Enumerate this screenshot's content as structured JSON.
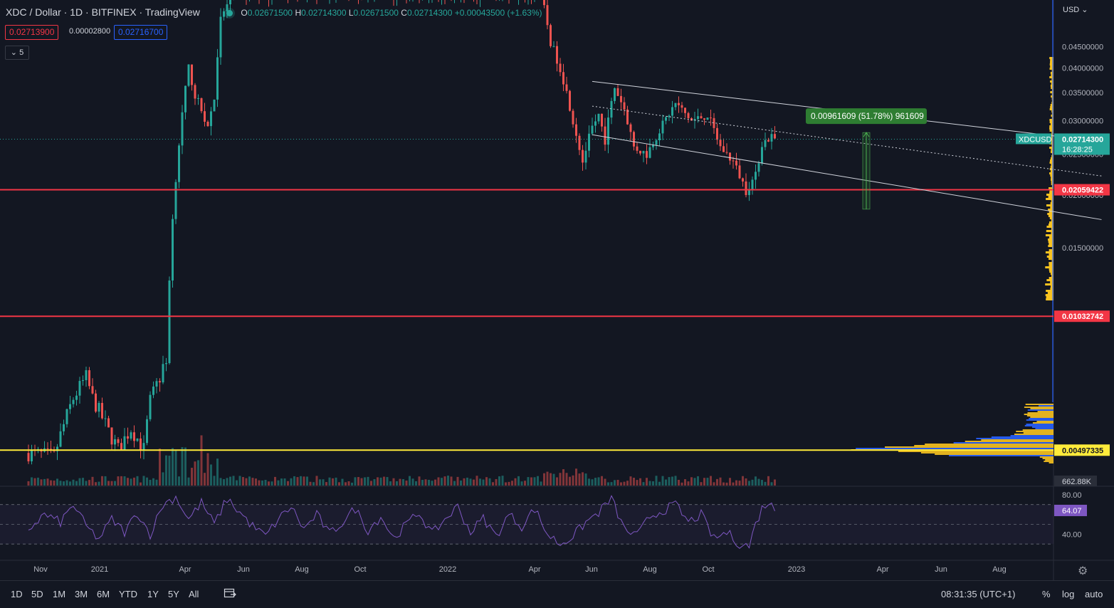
{
  "header": {
    "symbol_title": "XDC / Dollar · 1D · BITFINEX · TradingView",
    "ohlc": [
      {
        "key": "O",
        "value": "0.02671500"
      },
      {
        "key": "H",
        "value": "0.02714300"
      },
      {
        "key": "L",
        "value": "0.02671500"
      },
      {
        "key": "C",
        "value": "0.02714300"
      }
    ],
    "change": "+0.00043500 (+1.63%)",
    "bid": "0.02713900",
    "spread": "0.00002800",
    "ask": "0.02716700",
    "indicator_toggle": "5"
  },
  "colors": {
    "background": "#131722",
    "up": "#26a69a",
    "down": "#ef5350",
    "rsi": "#7e57c2",
    "support_red": "#f23645",
    "support_yellow": "#ffeb3b",
    "profile_blue": "#2962ff",
    "profile_yellow": "#f9c31f",
    "measure_green": "#2e7d32"
  },
  "chart_data": {
    "type": "candlestick",
    "title": "XDC / Dollar · 1D · BITFINEX",
    "currency": "USD",
    "scale": "log",
    "x_ticks": [
      "Nov",
      "2021",
      "Apr",
      "Jun",
      "Aug",
      "Oct",
      "2022",
      "Apr",
      "Jun",
      "Aug",
      "Oct",
      "2023",
      "Apr",
      "Jun",
      "Aug"
    ],
    "y_ticks": [
      "0.04500000",
      "0.04000000",
      "0.03500000",
      "0.03000000",
      "0.02500000",
      "0.02000000",
      "0.01500000"
    ],
    "y_visible_range": [
      0.0041,
      0.058
    ],
    "last_price": {
      "label": "XDCUSD",
      "value": "0.02714300",
      "countdown": "16:28:25"
    },
    "horizontal_levels": [
      {
        "value": 0.02059422,
        "label": "0.02059422",
        "color": "red"
      },
      {
        "value": 0.01032742,
        "label": "0.01032742",
        "color": "red"
      },
      {
        "value": 0.00497335,
        "label": "0.00497335",
        "color": "yellow"
      }
    ],
    "measure": {
      "label": "0.00961609 (51.78%) 961609",
      "from": 0.01852,
      "to": 0.02814
    },
    "channel": {
      "upper": [
        [
          176,
          0.0372
        ],
        [
          335,
          0.0268
        ]
      ],
      "middle": [
        [
          176,
          0.0325
        ],
        [
          335,
          0.0222
        ]
      ],
      "lower": [
        [
          176,
          0.0278
        ],
        [
          335,
          0.0175
        ]
      ]
    },
    "price_path": [
      [
        0,
        0.0049
      ],
      [
        8,
        0.0048
      ],
      [
        14,
        0.0066
      ],
      [
        18,
        0.0074
      ],
      [
        20,
        0.0066
      ],
      [
        25,
        0.0055
      ],
      [
        28,
        0.005
      ],
      [
        32,
        0.0056
      ],
      [
        36,
        0.005
      ],
      [
        38,
        0.0065
      ],
      [
        43,
        0.008
      ],
      [
        45,
        0.0175
      ],
      [
        48,
        0.031
      ],
      [
        50,
        0.04
      ],
      [
        52,
        0.0345
      ],
      [
        56,
        0.029
      ],
      [
        58,
        0.034
      ],
      [
        60,
        0.052
      ],
      [
        63,
        0.059
      ],
      [
        66,
        0.06
      ],
      [
        70,
        0.06
      ],
      [
        150,
        0.06
      ],
      [
        160,
        0.06
      ],
      [
        163,
        0.046
      ],
      [
        166,
        0.04
      ],
      [
        170,
        0.03
      ],
      [
        173,
        0.024
      ],
      [
        176,
        0.029
      ],
      [
        178,
        0.031
      ],
      [
        180,
        0.027
      ],
      [
        183,
        0.036
      ],
      [
        186,
        0.032
      ],
      [
        189,
        0.026
      ],
      [
        193,
        0.025
      ],
      [
        197,
        0.0285
      ],
      [
        202,
        0.033
      ],
      [
        207,
        0.03
      ],
      [
        212,
        0.031
      ],
      [
        216,
        0.026
      ],
      [
        220,
        0.024
      ],
      [
        224,
        0.0205
      ],
      [
        227,
        0.0222
      ],
      [
        229,
        0.0265
      ],
      [
        232,
        0.0276
      ],
      [
        233,
        0.0271
      ]
    ],
    "volume_last": "662.88K",
    "rsi": {
      "levels": [
        80,
        70,
        50,
        30
      ],
      "ticks": [
        "80.00",
        "40.00"
      ],
      "last": "64.07",
      "path": [
        [
          0,
          45
        ],
        [
          5,
          60
        ],
        [
          10,
          52
        ],
        [
          14,
          70
        ],
        [
          18,
          48
        ],
        [
          22,
          35
        ],
        [
          26,
          55
        ],
        [
          30,
          42
        ],
        [
          34,
          62
        ],
        [
          38,
          40
        ],
        [
          42,
          70
        ],
        [
          46,
          78
        ],
        [
          50,
          55
        ],
        [
          54,
          72
        ],
        [
          58,
          50
        ],
        [
          62,
          76
        ],
        [
          66,
          62
        ],
        [
          70,
          48
        ],
        [
          74,
          38
        ],
        [
          78,
          55
        ],
        [
          82,
          68
        ],
        [
          86,
          45
        ],
        [
          90,
          60
        ],
        [
          94,
          40
        ],
        [
          98,
          52
        ],
        [
          102,
          66
        ],
        [
          106,
          44
        ],
        [
          110,
          58
        ],
        [
          114,
          36
        ],
        [
          118,
          50
        ],
        [
          122,
          62
        ],
        [
          126,
          40
        ],
        [
          130,
          55
        ],
        [
          134,
          68
        ],
        [
          138,
          42
        ],
        [
          142,
          56
        ],
        [
          146,
          38
        ],
        [
          150,
          60
        ],
        [
          154,
          48
        ],
        [
          158,
          66
        ],
        [
          162,
          40
        ],
        [
          166,
          30
        ],
        [
          170,
          38
        ],
        [
          174,
          52
        ],
        [
          178,
          62
        ],
        [
          182,
          76
        ],
        [
          186,
          45
        ],
        [
          190,
          38
        ],
        [
          194,
          58
        ],
        [
          198,
          64
        ],
        [
          202,
          70
        ],
        [
          206,
          52
        ],
        [
          210,
          60
        ],
        [
          214,
          35
        ],
        [
          218,
          42
        ],
        [
          222,
          30
        ],
        [
          225,
          28
        ],
        [
          227,
          50
        ],
        [
          229,
          66
        ],
        [
          231,
          73
        ],
        [
          233,
          64
        ]
      ]
    },
    "time_offset_label_note": ""
  },
  "bottom_bar": {
    "timeframes": [
      "1D",
      "5D",
      "1M",
      "3M",
      "6M",
      "YTD",
      "1Y",
      "5Y",
      "All"
    ],
    "clock": "08:31:35 (UTC+1)",
    "options": [
      "%",
      "log",
      "auto"
    ]
  },
  "axis_currency": "USD"
}
